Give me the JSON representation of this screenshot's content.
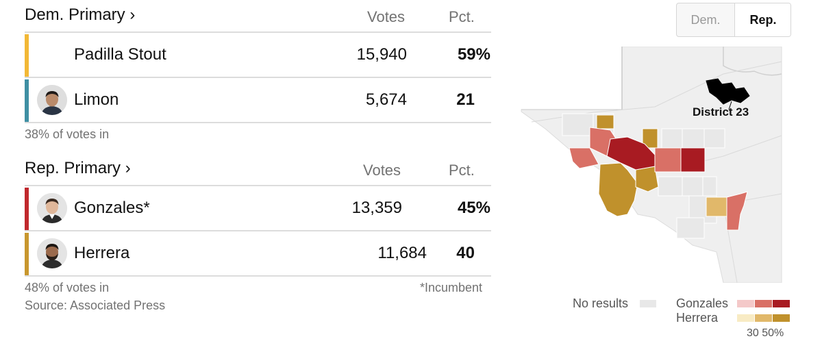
{
  "dem": {
    "title": "Dem. Primary ›",
    "votes_header": "Votes",
    "pct_header": "Pct.",
    "candidates": [
      {
        "name": "Padilla Stout",
        "votes": "15,940",
        "pct": "59%",
        "color": "#f2b836",
        "has_photo": false
      },
      {
        "name": "Limon",
        "votes": "5,674",
        "pct": "21",
        "color": "#3f8fa3",
        "has_photo": true
      }
    ],
    "reporting": "38% of votes in"
  },
  "rep": {
    "title": "Rep. Primary ›",
    "votes_header": "Votes",
    "pct_header": "Pct.",
    "candidates": [
      {
        "name": "Gonzales*",
        "votes": "13,359",
        "pct": "45%",
        "color": "#c0282d",
        "has_photo": true
      },
      {
        "name": "Herrera",
        "votes": "11,684",
        "pct": "40",
        "color": "#c8972e",
        "has_photo": true
      }
    ],
    "reporting": "48% of votes in",
    "incumbent_note": "*Incumbent",
    "source": "Source: Associated Press"
  },
  "toggle": {
    "dem_label": "Dem.",
    "rep_label": "Rep.",
    "selected": "Rep."
  },
  "map": {
    "district_label": "District 23",
    "colors": {
      "no_results": "#e8e8e8",
      "gonzales": [
        "#f4c9c9",
        "#d97066",
        "#a81b22"
      ],
      "herrera": [
        "#f8ebc4",
        "#e1b86a",
        "#c0912c"
      ]
    }
  },
  "legend": {
    "no_results": "No results",
    "gonzales": "Gonzales",
    "herrera": "Herrera",
    "scale": "30 50%"
  }
}
